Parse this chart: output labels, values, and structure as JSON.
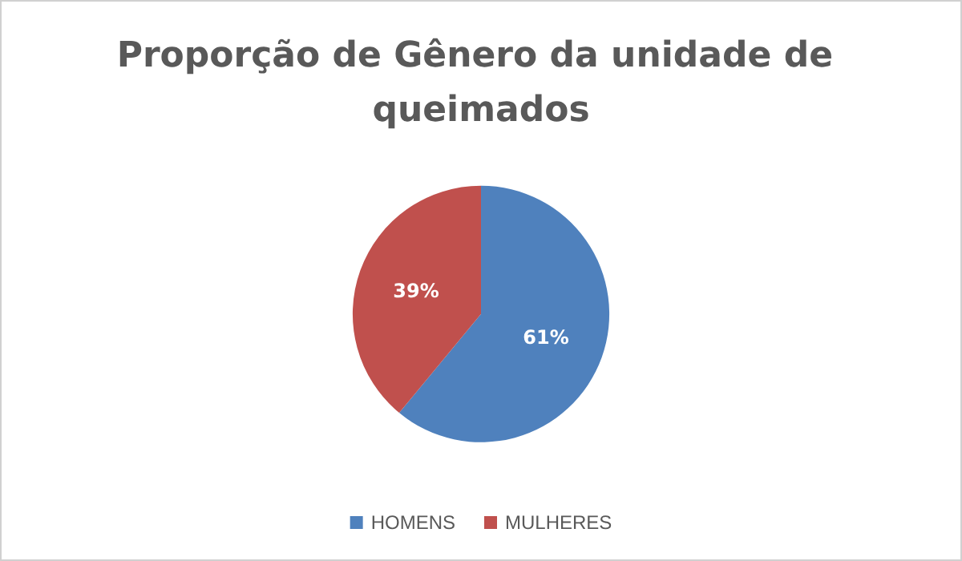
{
  "chart_data": {
    "type": "pie",
    "title": "Proporção de Gênero da unidade de queimados",
    "categories": [
      "HOMENS",
      "MULHERES"
    ],
    "values": [
      61,
      39
    ],
    "colors": [
      "#4f81bd",
      "#c0504d"
    ],
    "value_labels": [
      "61%",
      "39%"
    ],
    "legend": "bottom"
  }
}
